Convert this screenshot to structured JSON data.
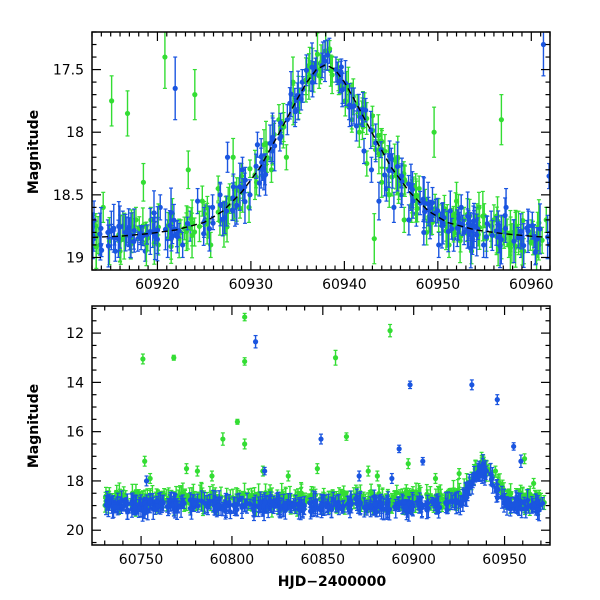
{
  "chart_data": [
    {
      "panel": "top",
      "type": "scatter",
      "title": "",
      "xlabel": "",
      "ylabel": "Magnitude",
      "xlim": [
        60913,
        60962
      ],
      "ylim": [
        19.1,
        17.2
      ],
      "y_inverted": true,
      "xticks_major": [
        60920,
        60930,
        60940,
        60950,
        60960
      ],
      "xtick_labels": [
        "60920",
        "60930",
        "60940",
        "60950",
        "60960"
      ],
      "yticks_major": [
        17.5,
        18,
        18.5,
        19
      ],
      "ytick_labels": [
        "17.5",
        "18",
        "18.5",
        "19"
      ],
      "series_colors": {
        "green": "#33dd33",
        "blue": "#1a55e0",
        "model": "#000000"
      },
      "model_curve": {
        "name": "model",
        "style": "dashed",
        "x": [
          60913,
          60916,
          60919,
          60922,
          60925,
          60927,
          60929,
          60931,
          60933,
          60935,
          60936,
          60937,
          60938,
          60939,
          60940,
          60941,
          60943,
          60945,
          60947,
          60949,
          60951,
          60954,
          60957,
          60960,
          60962
        ],
        "y": [
          18.84,
          18.83,
          18.81,
          18.78,
          18.72,
          18.63,
          18.48,
          18.28,
          18.01,
          17.73,
          17.6,
          17.5,
          17.46,
          17.5,
          17.6,
          17.73,
          18.01,
          18.28,
          18.48,
          18.63,
          18.72,
          18.78,
          18.81,
          18.83,
          18.84
        ]
      },
      "series": [
        {
          "name": "green",
          "points": [
            [
              60913.4,
              18.75,
              0.1
            ],
            [
              60914.2,
              18.6,
              0.12
            ],
            [
              60915.1,
              17.75,
              0.2
            ],
            [
              60916.0,
              18.95,
              0.08
            ],
            [
              60916.8,
              17.85,
              0.18
            ],
            [
              60917.7,
              18.7,
              0.1
            ],
            [
              60918.5,
              18.4,
              0.15
            ],
            [
              60919.3,
              18.7,
              0.1
            ],
            [
              60920.1,
              18.9,
              0.08
            ],
            [
              60920.8,
              17.4,
              0.25
            ],
            [
              60921.6,
              18.65,
              0.12
            ],
            [
              60922.5,
              18.8,
              0.1
            ],
            [
              60923.3,
              18.3,
              0.15
            ],
            [
              60924.0,
              17.7,
              0.2
            ],
            [
              60924.8,
              18.55,
              0.12
            ],
            [
              60925.7,
              18.9,
              0.1
            ],
            [
              60926.5,
              18.45,
              0.1
            ],
            [
              60927.3,
              18.7,
              0.12
            ],
            [
              60928.1,
              18.2,
              0.15
            ],
            [
              60929.0,
              18.35,
              0.1
            ],
            [
              60929.8,
              18.6,
              0.12
            ],
            [
              60930.6,
              18.4,
              0.1
            ],
            [
              60931.4,
              18.1,
              0.12
            ],
            [
              60932.2,
              18.3,
              0.1
            ],
            [
              60933.0,
              17.9,
              0.12
            ],
            [
              60933.8,
              18.2,
              0.1
            ],
            [
              60934.5,
              17.6,
              0.2
            ],
            [
              60935.2,
              17.75,
              0.1
            ],
            [
              60935.9,
              17.6,
              0.1
            ],
            [
              60936.6,
              17.45,
              0.12
            ],
            [
              60937.3,
              17.55,
              0.1
            ],
            [
              60938.0,
              17.35,
              0.15
            ],
            [
              60938.7,
              17.5,
              0.1
            ],
            [
              60939.4,
              17.6,
              0.1
            ],
            [
              60940.1,
              17.75,
              0.12
            ],
            [
              60940.8,
              17.9,
              0.1
            ],
            [
              60941.6,
              18.0,
              0.12
            ],
            [
              60942.4,
              18.25,
              0.1
            ],
            [
              60943.2,
              18.85,
              0.2
            ],
            [
              60944.0,
              18.4,
              0.12
            ],
            [
              60944.8,
              18.5,
              0.1
            ],
            [
              60945.6,
              18.35,
              0.15
            ],
            [
              60946.4,
              18.7,
              0.1
            ],
            [
              60947.2,
              18.6,
              0.12
            ],
            [
              60948.0,
              18.45,
              0.1
            ],
            [
              60948.8,
              18.8,
              0.1
            ],
            [
              60949.6,
              18.0,
              0.2
            ],
            [
              60950.4,
              18.7,
              0.12
            ],
            [
              60951.2,
              18.9,
              0.1
            ],
            [
              60952.0,
              18.55,
              0.15
            ],
            [
              60952.8,
              18.7,
              0.1
            ],
            [
              60953.6,
              18.95,
              0.1
            ],
            [
              60954.4,
              18.6,
              0.12
            ],
            [
              60955.2,
              18.85,
              0.1
            ],
            [
              60956.0,
              18.7,
              0.12
            ],
            [
              60956.8,
              17.9,
              0.2
            ],
            [
              60957.6,
              18.9,
              0.1
            ],
            [
              60958.4,
              18.75,
              0.12
            ],
            [
              60959.2,
              18.95,
              0.1
            ],
            [
              60960.0,
              18.8,
              0.1
            ],
            [
              60960.8,
              18.9,
              0.12
            ],
            [
              60961.6,
              18.7,
              0.1
            ]
          ]
        },
        {
          "name": "blue",
          "points": [
            [
              60913.2,
              18.85,
              0.1
            ],
            [
              60913.9,
              18.9,
              0.12
            ],
            [
              60914.7,
              18.8,
              0.1
            ],
            [
              60915.5,
              18.95,
              0.08
            ],
            [
              60916.3,
              18.75,
              0.12
            ],
            [
              60917.1,
              18.9,
              0.1
            ],
            [
              60917.9,
              18.85,
              0.1
            ],
            [
              60918.7,
              18.95,
              0.08
            ],
            [
              60919.5,
              18.8,
              0.12
            ],
            [
              60920.3,
              18.6,
              0.1
            ],
            [
              60921.1,
              18.85,
              0.15
            ],
            [
              60921.9,
              17.65,
              0.25
            ],
            [
              60922.7,
              18.9,
              0.1
            ],
            [
              60923.5,
              18.75,
              0.12
            ],
            [
              60924.3,
              18.55,
              0.1
            ],
            [
              60925.1,
              18.7,
              0.12
            ],
            [
              60925.9,
              18.6,
              0.1
            ],
            [
              60926.7,
              18.5,
              0.1
            ],
            [
              60927.5,
              18.2,
              0.12
            ],
            [
              60928.3,
              18.6,
              0.15
            ],
            [
              60929.1,
              18.3,
              0.1
            ],
            [
              60929.9,
              18.5,
              0.12
            ],
            [
              60930.7,
              18.1,
              0.1
            ],
            [
              60931.5,
              18.3,
              0.12
            ],
            [
              60932.3,
              18.15,
              0.1
            ],
            [
              60933.1,
              18.05,
              0.1
            ],
            [
              60933.9,
              17.9,
              0.12
            ],
            [
              60934.7,
              17.75,
              0.1
            ],
            [
              60935.5,
              17.6,
              0.1
            ],
            [
              60936.3,
              17.55,
              0.12
            ],
            [
              60937.0,
              17.45,
              0.1
            ],
            [
              60937.7,
              17.4,
              0.12
            ],
            [
              60938.4,
              17.35,
              0.1
            ],
            [
              60939.1,
              17.5,
              0.1
            ],
            [
              60939.8,
              17.65,
              0.12
            ],
            [
              60940.5,
              17.8,
              0.1
            ],
            [
              60941.3,
              17.95,
              0.12
            ],
            [
              60942.1,
              18.15,
              0.1
            ],
            [
              60942.9,
              18.3,
              0.1
            ],
            [
              60943.7,
              18.55,
              0.15
            ],
            [
              60944.5,
              18.45,
              0.1
            ],
            [
              60945.3,
              18.6,
              0.12
            ],
            [
              60946.1,
              18.5,
              0.1
            ],
            [
              60946.9,
              18.7,
              0.12
            ],
            [
              60947.7,
              18.65,
              0.1
            ],
            [
              60948.5,
              18.8,
              0.1
            ],
            [
              60949.3,
              18.7,
              0.12
            ],
            [
              60950.1,
              18.9,
              0.1
            ],
            [
              60950.9,
              18.75,
              0.12
            ],
            [
              60951.7,
              18.85,
              0.1
            ],
            [
              60952.5,
              18.6,
              0.1
            ],
            [
              60953.3,
              18.8,
              0.12
            ],
            [
              60954.1,
              18.7,
              0.1
            ],
            [
              60954.9,
              18.9,
              0.1
            ],
            [
              60955.7,
              18.75,
              0.12
            ],
            [
              60956.5,
              18.85,
              0.1
            ],
            [
              60957.3,
              18.6,
              0.15
            ],
            [
              60958.1,
              18.8,
              0.1
            ],
            [
              60958.9,
              18.9,
              0.1
            ],
            [
              60959.7,
              18.75,
              0.12
            ],
            [
              60960.5,
              18.95,
              0.1
            ],
            [
              60961.3,
              17.3,
              0.25
            ],
            [
              60961.9,
              18.35,
              0.1
            ]
          ]
        }
      ]
    },
    {
      "panel": "bottom",
      "type": "scatter",
      "title": "",
      "xlabel": "HJD−2400000",
      "ylabel": "Magnitude",
      "xlim": [
        60723,
        60975
      ],
      "ylim": [
        20.6,
        10.9
      ],
      "y_inverted": true,
      "xticks_major": [
        60750,
        60800,
        60850,
        60900,
        60950
      ],
      "xtick_labels": [
        "60750",
        "60800",
        "60850",
        "60900",
        "60950"
      ],
      "yticks_major": [
        12,
        14,
        16,
        18,
        20
      ],
      "ytick_labels": [
        "12",
        "14",
        "16",
        "18",
        "20"
      ],
      "series_colors": {
        "green": "#33dd33",
        "blue": "#1a55e0"
      },
      "series": [
        {
          "name": "green",
          "points": [
            [
              60751,
              13.05,
              0.2
            ],
            [
              60768,
              13.0,
              0.1
            ],
            [
              60807,
              11.35,
              0.15
            ],
            [
              60807,
              13.15,
              0.15
            ],
            [
              60887,
              11.9,
              0.25
            ],
            [
              60857,
              13.0,
              0.3
            ],
            [
              60795,
              16.3,
              0.25
            ],
            [
              60803,
              15.6,
              0.1
            ],
            [
              60807,
              16.5,
              0.2
            ],
            [
              60863,
              16.2,
              0.15
            ],
            [
              60752,
              17.2,
              0.2
            ],
            [
              60781,
              17.6,
              0.2
            ],
            [
              60789,
              17.8,
              0.2
            ],
            [
              60817,
              17.6,
              0.2
            ],
            [
              60897,
              17.3,
              0.2
            ],
            [
              60961,
              17.1,
              0.2
            ],
            [
              60966,
              18.1,
              0.2
            ],
            [
              60831,
              17.8,
              0.2
            ],
            [
              60847,
              17.5,
              0.2
            ],
            [
              60875,
              17.6,
              0.2
            ],
            [
              60912,
              17.9,
              0.2
            ],
            [
              60925,
              17.7,
              0.2
            ],
            [
              60755,
              17.9,
              0.2
            ],
            [
              60775,
              17.5,
              0.2
            ],
            [
              60880,
              17.8,
              0.2
            ],
            [
              60945,
              17.6,
              0.2
            ]
          ]
        },
        {
          "name": "blue",
          "points": [
            [
              60813,
              12.35,
              0.25
            ],
            [
              60898,
              14.1,
              0.15
            ],
            [
              60932,
              14.1,
              0.2
            ],
            [
              60946,
              14.7,
              0.2
            ],
            [
              60849,
              16.3,
              0.2
            ],
            [
              60955,
              16.6,
              0.15
            ],
            [
              60959,
              17.2,
              0.25
            ],
            [
              60892,
              16.7,
              0.15
            ],
            [
              60818,
              17.6,
              0.15
            ],
            [
              60905,
              17.2,
              0.15
            ],
            [
              60753,
              18.0,
              0.2
            ],
            [
              60940,
              17.6,
              0.2
            ],
            [
              60936,
              17.4,
              0.2
            ],
            [
              60888,
              17.9,
              0.2
            ],
            [
              60870,
              17.8,
              0.2
            ]
          ]
        }
      ],
      "dense_band": {
        "description": "dense cloud of nightly measurements",
        "green": {
          "x_range": [
            60730,
            60972
          ],
          "center": 18.75,
          "spread": 0.55
        },
        "blue": {
          "x_range": [
            60730,
            60972
          ],
          "center": 19.0,
          "spread": 0.45
        },
        "flare": {
          "x_peak": 60938,
          "depth": 1.4,
          "width": 6
        }
      }
    }
  ]
}
